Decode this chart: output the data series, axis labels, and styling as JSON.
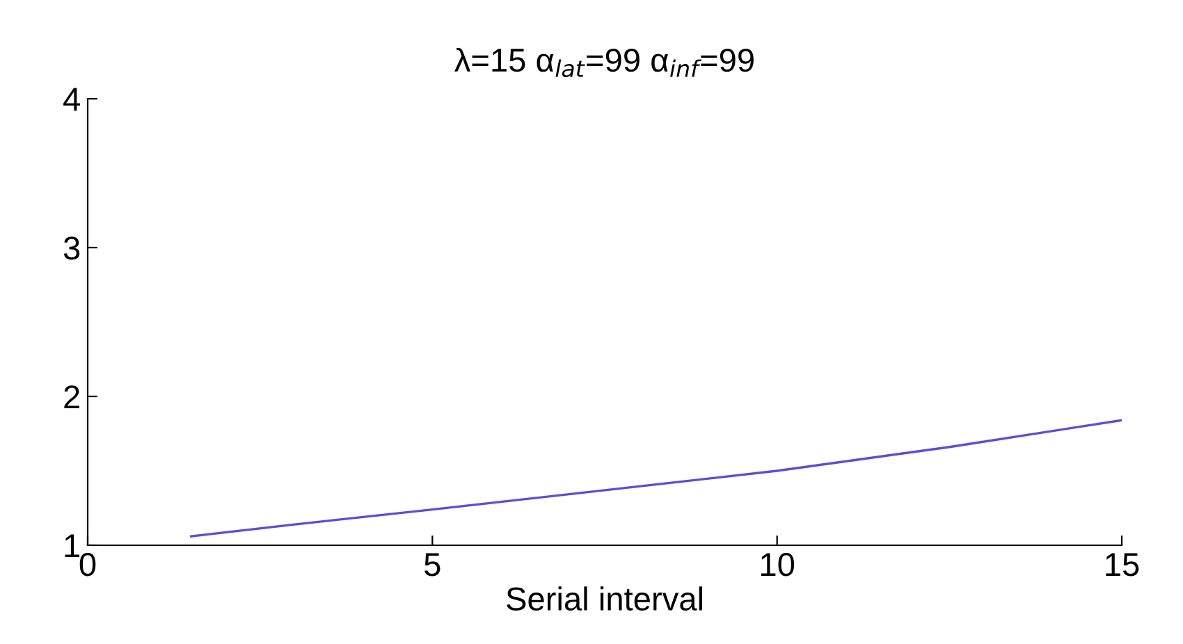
{
  "chart_data": {
    "type": "line",
    "title": "λ=15 α$_{lat}$=99 α$_{inf}$=99",
    "xlabel": "Serial interval",
    "series": [
      {
        "color": "#5a4fd8",
        "x": [
          1.5,
          3,
          5,
          7.5,
          10,
          12.5,
          15
        ],
        "values": [
          1.06,
          1.14,
          1.24,
          1.37,
          1.5,
          1.66,
          1.84
        ]
      }
    ],
    "xlim": [
      0,
      15
    ],
    "xticks": [
      0,
      5,
      10,
      15
    ],
    "ylim": [
      1,
      4
    ],
    "yticks": [
      1,
      2,
      3,
      4
    ],
    "grid": false,
    "legend": false,
    "marker": "none",
    "line_style": "solid"
  }
}
